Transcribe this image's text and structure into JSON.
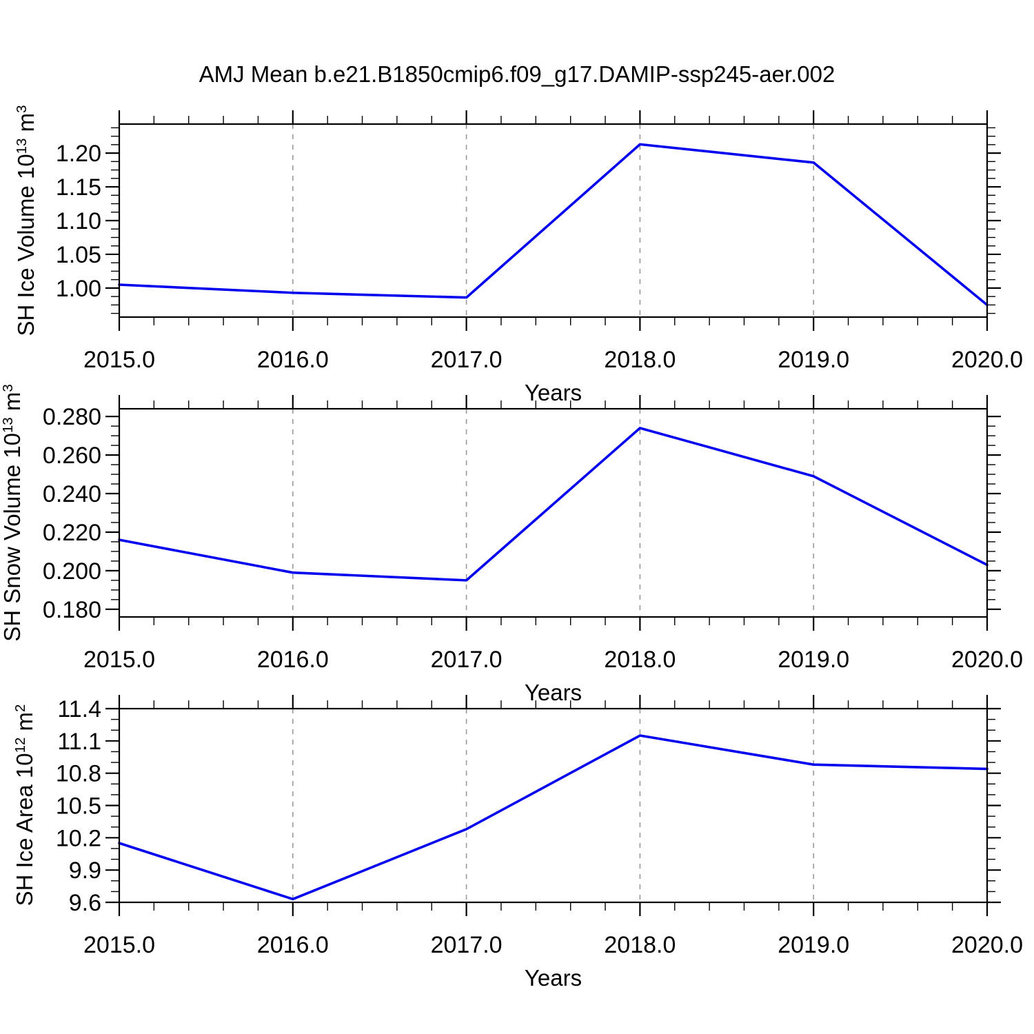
{
  "title": "AMJ Mean b.e21.B1850cmip6.f09_g17.DAMIP-ssp245-aer.002",
  "line_color": "#0000ee",
  "gridline_color": "#999999",
  "frame_color": "#000000",
  "chart_data": [
    {
      "type": "line",
      "xlabel": "Years",
      "ylabel": "SH Ice Volume 10^13 m^3",
      "ylabel_parts": {
        "text": "SH Ice Volume 10",
        "exp": "13",
        "unit": " m",
        "unit_exp": "3"
      },
      "x": [
        2015.0,
        2016.0,
        2017.0,
        2018.0,
        2019.0,
        2020.0
      ],
      "y": [
        1.005,
        0.993,
        0.986,
        1.213,
        1.186,
        0.975
      ],
      "xlim": [
        2015.0,
        2020.0
      ],
      "ylim": [
        0.957,
        1.243
      ],
      "x_tick_values": [
        2015.0,
        2016.0,
        2017.0,
        2018.0,
        2019.0,
        2020.0
      ],
      "x_tick_labels": [
        "2015.0",
        "2016.0",
        "2017.0",
        "2018.0",
        "2019.0",
        "2020.0"
      ],
      "x_minor_step": 0.2,
      "y_tick_values": [
        1.0,
        1.05,
        1.1,
        1.15,
        1.2
      ],
      "y_tick_labels": [
        "1.00",
        "1.05",
        "1.10",
        "1.15",
        "1.20"
      ],
      "y_minor_step": 0.0125,
      "gridlines_at": [
        2016.0,
        2017.0,
        2018.0,
        2019.0
      ],
      "grid": "dashed-vertical",
      "legend": "none"
    },
    {
      "type": "line",
      "xlabel": "Years",
      "ylabel": "SH Snow Volume 10^13 m^3",
      "ylabel_parts": {
        "text": "SH Snow Volume 10",
        "exp": "13",
        "unit": " m",
        "unit_exp": "3"
      },
      "x": [
        2015.0,
        2016.0,
        2017.0,
        2018.0,
        2019.0,
        2020.0
      ],
      "y": [
        0.216,
        0.199,
        0.195,
        0.274,
        0.249,
        0.203
      ],
      "xlim": [
        2015.0,
        2020.0
      ],
      "ylim": [
        0.176,
        0.284
      ],
      "x_tick_values": [
        2015.0,
        2016.0,
        2017.0,
        2018.0,
        2019.0,
        2020.0
      ],
      "x_tick_labels": [
        "2015.0",
        "2016.0",
        "2017.0",
        "2018.0",
        "2019.0",
        "2020.0"
      ],
      "x_minor_step": 0.2,
      "y_tick_values": [
        0.18,
        0.2,
        0.22,
        0.24,
        0.26,
        0.28
      ],
      "y_tick_labels": [
        "0.180",
        "0.200",
        "0.220",
        "0.240",
        "0.260",
        "0.280"
      ],
      "y_minor_step": 0.005,
      "gridlines_at": [
        2016.0,
        2017.0,
        2018.0,
        2019.0
      ],
      "grid": "dashed-vertical",
      "legend": "none"
    },
    {
      "type": "line",
      "xlabel": "Years",
      "ylabel": "SH Ice Area 10^12 m^2",
      "ylabel_parts": {
        "text": "SH Ice Area 10",
        "exp": "12",
        "unit": " m",
        "unit_exp": "2"
      },
      "x": [
        2015.0,
        2016.0,
        2017.0,
        2018.0,
        2019.0,
        2020.0
      ],
      "y": [
        10.15,
        9.63,
        10.28,
        11.15,
        10.88,
        10.84
      ],
      "xlim": [
        2015.0,
        2020.0
      ],
      "ylim": [
        9.6,
        11.4
      ],
      "x_tick_values": [
        2015.0,
        2016.0,
        2017.0,
        2018.0,
        2019.0,
        2020.0
      ],
      "x_tick_labels": [
        "2015.0",
        "2016.0",
        "2017.0",
        "2018.0",
        "2019.0",
        "2020.0"
      ],
      "x_minor_step": 0.2,
      "y_tick_values": [
        9.6,
        9.9,
        10.2,
        10.5,
        10.8,
        11.1,
        11.4
      ],
      "y_tick_labels": [
        "9.6",
        "9.9",
        "10.2",
        "10.5",
        "10.8",
        "11.1",
        "11.4"
      ],
      "y_minor_step": 0.1,
      "gridlines_at": [
        2016.0,
        2017.0,
        2018.0,
        2019.0
      ],
      "grid": "dashed-vertical",
      "legend": "none"
    }
  ]
}
